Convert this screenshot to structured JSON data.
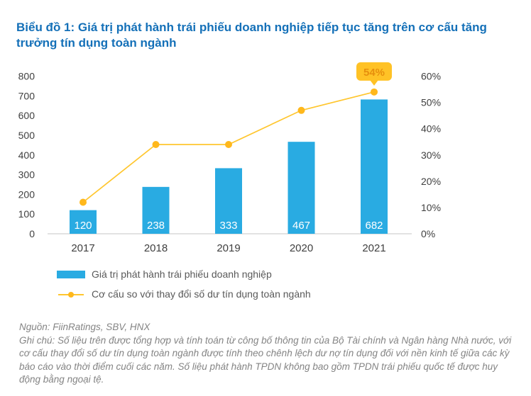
{
  "title": "Biểu đồ 1: Giá trị phát hành trái phiếu doanh nghiệp tiếp tục tăng trên cơ cấu tăng trưởng tín dụng toàn ngành",
  "colors": {
    "title_text": "#1470B8",
    "bar": "#29ABE2",
    "bar_label_text": "#FFFFFF",
    "line": "#FFC62E",
    "marker": "#FFB81C",
    "callout_bg": "#FFC226",
    "callout_text": "#E78F0D",
    "axis_text": "#404040",
    "legend_text": "#595959",
    "footer_text": "#848484",
    "baseline": "#D0D0D0"
  },
  "chart_data": {
    "type": "combo",
    "categories": [
      "2017",
      "2018",
      "2019",
      "2020",
      "2021"
    ],
    "series": [
      {
        "name": "Giá trị phát hành trái phiếu doanh nghiệp",
        "type": "bar",
        "axis": "left",
        "values": [
          120,
          238,
          333,
          467,
          682
        ],
        "data_labels_shown": true
      },
      {
        "name": "Cơ cấu so với thay đổi số dư tín dụng toàn ngành",
        "type": "line",
        "axis": "right",
        "values": [
          12,
          34,
          34,
          47,
          54
        ],
        "unit": "%"
      }
    ],
    "left_axis": {
      "min": 0,
      "max": 800,
      "step": 100
    },
    "right_axis": {
      "min": 0,
      "max": 60,
      "step": 10,
      "suffix": "%"
    },
    "annotation": {
      "text": "54%",
      "category": "2021",
      "series": "line"
    },
    "grid": false,
    "legend_position": "bottom-left"
  },
  "legend": [
    {
      "label": "Giá trị phát hành trái phiếu doanh nghiệp",
      "swatch": "bar"
    },
    {
      "label": "Cơ cấu so với thay đổi số dư tín dụng toàn ngành",
      "swatch": "line"
    }
  ],
  "footer": {
    "source": "Nguồn: FiinRatings, SBV, HNX",
    "note": "Ghi chú: Số liệu trên được tổng hợp và tính toán từ công bố thông tin của Bộ Tài chính và Ngân hàng Nhà nước, với cơ cấu thay đổi số dư tín dụng toàn ngành được tính theo chênh lệch dư nợ tín dụng đối với nền kinh tế giữa các kỳ báo cáo vào thời điểm cuối các năm. Số liệu phát hành TPDN không bao gồm TPDN trái phiếu quốc tế được huy động bằng ngoại tệ."
  }
}
